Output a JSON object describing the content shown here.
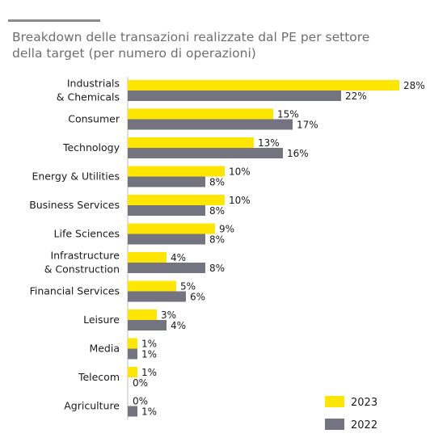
{
  "chart_data": {
    "type": "bar",
    "orientation": "horizontal",
    "title": "Breakdown delle transazioni realizzate dal PE per settore\ndella target (per numero di operazioni)",
    "categories": [
      "Industrials\n& Chemicals",
      "Consumer",
      "Technology",
      "Energy & Utilities",
      "Business Services",
      "Life Sciences",
      "Infrastructure\n& Construction",
      "Financial Services",
      "Leisure",
      "Media",
      "Telecom",
      "Agriculture"
    ],
    "series": [
      {
        "name": "2023",
        "color": "#ffe600",
        "values": [
          28,
          15,
          13,
          10,
          10,
          9,
          4,
          5,
          3,
          1,
          1,
          0
        ]
      },
      {
        "name": "2022",
        "color": "#747480",
        "values": [
          22,
          17,
          16,
          8,
          8,
          8,
          8,
          6,
          4,
          1,
          0,
          1
        ]
      }
    ],
    "value_suffix": "%",
    "xlim": [
      0,
      28
    ],
    "grid": false,
    "legend_position": "bottom-right"
  },
  "colors": {
    "title": "#6e6e6e",
    "rule": "#8a8a8a",
    "axis": "#bdbdbd"
  }
}
